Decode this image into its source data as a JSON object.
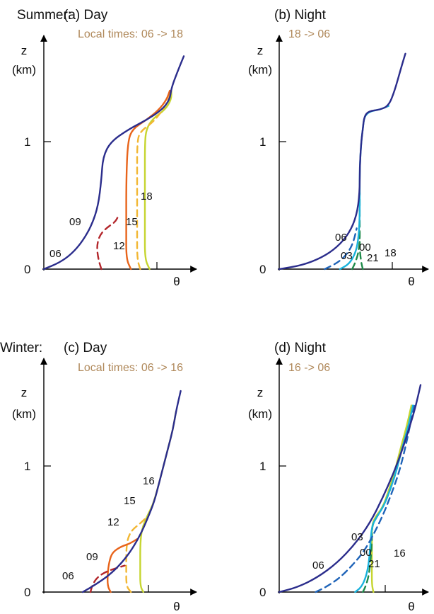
{
  "colors": {
    "accent_text": "#b0895b",
    "axis": "#000000",
    "c06": "#2b2d8c",
    "c09": "#b3262b",
    "c12": "#e8641b",
    "c15": "#f2b733",
    "c18": "#c6d530",
    "c21": "#1e8a4a",
    "c00": "#19b2dc",
    "c03": "#1e63b8"
  },
  "chart_data": [
    {
      "type": "line",
      "panel": "(a) Day",
      "season_label": "Summer:",
      "title": "(a) Day",
      "subtitle": "Local times: 06 -> 18",
      "ylabel": "z",
      "ylabel_unit": "(km)",
      "xlabel": "θ",
      "y_ticks": [
        "0",
        "1"
      ],
      "ylim": [
        0,
        1.75
      ],
      "xlim": [
        0,
        1
      ],
      "series": [
        {
          "name": "06",
          "style": "solid",
          "color_key": "c06",
          "points": [
            [
              0.0,
              0.0
            ],
            [
              0.1,
              0.05
            ],
            [
              0.18,
              0.12
            ],
            [
              0.25,
              0.22
            ],
            [
              0.31,
              0.35
            ],
            [
              0.35,
              0.5
            ],
            [
              0.37,
              0.7
            ],
            [
              0.38,
              0.88
            ],
            [
              0.43,
              1.0
            ],
            [
              0.55,
              1.1
            ],
            [
              0.66,
              1.17
            ],
            [
              0.76,
              1.25
            ],
            [
              0.81,
              1.33
            ],
            [
              0.82,
              1.42
            ],
            [
              0.86,
              1.55
            ],
            [
              0.9,
              1.67
            ]
          ]
        },
        {
          "name": "09",
          "style": "dashed",
          "color_key": "c09",
          "points": [
            [
              0.37,
              0.0
            ],
            [
              0.35,
              0.08
            ],
            [
              0.34,
              0.18
            ],
            [
              0.36,
              0.27
            ],
            [
              0.41,
              0.33
            ],
            [
              0.46,
              0.37
            ],
            [
              0.48,
              0.42
            ]
          ]
        },
        {
          "name": "12",
          "style": "solid",
          "color_key": "c12",
          "points": [
            [
              0.56,
              0.0
            ],
            [
              0.53,
              0.08
            ],
            [
              0.53,
              0.3
            ],
            [
              0.53,
              0.7
            ],
            [
              0.54,
              1.0
            ],
            [
              0.57,
              1.1
            ],
            [
              0.66,
              1.17
            ],
            [
              0.74,
              1.25
            ],
            [
              0.79,
              1.33
            ],
            [
              0.81,
              1.4
            ]
          ]
        },
        {
          "name": "15",
          "style": "dashed",
          "color_key": "c15",
          "points": [
            [
              0.62,
              0.0
            ],
            [
              0.6,
              0.08
            ],
            [
              0.6,
              0.3
            ],
            [
              0.6,
              0.7
            ],
            [
              0.6,
              1.0
            ],
            [
              0.62,
              1.08
            ],
            [
              0.7,
              1.15
            ],
            [
              0.76,
              1.24
            ],
            [
              0.8,
              1.32
            ],
            [
              0.82,
              1.4
            ]
          ]
        },
        {
          "name": "18",
          "style": "solid",
          "color_key": "c18",
          "points": [
            [
              0.68,
              0.0
            ],
            [
              0.65,
              0.08
            ],
            [
              0.65,
              0.3
            ],
            [
              0.65,
              0.7
            ],
            [
              0.65,
              1.0
            ],
            [
              0.66,
              1.1
            ],
            [
              0.7,
              1.18
            ],
            [
              0.78,
              1.25
            ],
            [
              0.82,
              1.33
            ],
            [
              0.82,
              1.4
            ]
          ]
        }
      ]
    },
    {
      "type": "line",
      "panel": "(b) Night",
      "title": "(b) Night",
      "subtitle": "18 -> 06",
      "ylabel": "z",
      "ylabel_unit": "(km)",
      "xlabel": "θ",
      "y_ticks": [
        "0",
        "1"
      ],
      "ylim": [
        0,
        1.75
      ],
      "xlim": [
        0,
        1
      ],
      "series": [
        {
          "name": "06",
          "style": "solid",
          "color_key": "c06",
          "points": [
            [
              0.0,
              0.0
            ],
            [
              0.15,
              0.03
            ],
            [
              0.28,
              0.09
            ],
            [
              0.38,
              0.17
            ],
            [
              0.46,
              0.28
            ],
            [
              0.51,
              0.42
            ],
            [
              0.53,
              0.6
            ],
            [
              0.53,
              0.8
            ],
            [
              0.54,
              1.0
            ],
            [
              0.55,
              1.1
            ],
            [
              0.56,
              1.2
            ],
            [
              0.59,
              1.24
            ],
            [
              0.66,
              1.25
            ],
            [
              0.72,
              1.28
            ],
            [
              0.76,
              1.4
            ],
            [
              0.8,
              1.57
            ],
            [
              0.83,
              1.69
            ]
          ]
        },
        {
          "name": "03",
          "style": "dashed",
          "color_key": "c03",
          "points": [
            [
              0.3,
              0.0
            ],
            [
              0.4,
              0.06
            ],
            [
              0.46,
              0.14
            ],
            [
              0.49,
              0.22
            ],
            [
              0.51,
              0.32
            ]
          ]
        },
        {
          "name": "00",
          "style": "solid",
          "color_key": "c00",
          "points": [
            [
              0.4,
              0.0
            ],
            [
              0.46,
              0.04
            ],
            [
              0.5,
              0.12
            ],
            [
              0.52,
              0.22
            ],
            [
              0.53,
              0.4
            ],
            [
              0.53,
              0.6
            ],
            [
              0.53,
              0.8
            ],
            [
              0.54,
              1.0
            ],
            [
              0.55,
              1.1
            ],
            [
              0.56,
              1.2
            ],
            [
              0.6,
              1.24
            ],
            [
              0.66,
              1.25
            ],
            [
              0.72,
              1.28
            ]
          ]
        },
        {
          "name": "21",
          "style": "dashed",
          "color_key": "c21",
          "points": [
            [
              0.48,
              0.0
            ],
            [
              0.5,
              0.05
            ],
            [
              0.52,
              0.12
            ],
            [
              0.53,
              0.22
            ],
            [
              0.53,
              0.32
            ]
          ]
        },
        {
          "name": "18",
          "style": "dashed",
          "color_key": "c21",
          "points": [
            [
              0.55,
              0.0
            ],
            [
              0.54,
              0.05
            ],
            [
              0.53,
              0.15
            ],
            [
              0.53,
              0.3
            ],
            [
              0.53,
              0.45
            ],
            [
              0.53,
              0.6
            ]
          ]
        }
      ]
    },
    {
      "type": "line",
      "panel": "(c) Day",
      "season_label": "Winter:",
      "title": "(c) Day",
      "subtitle": "Local times: 06 -> 16",
      "ylabel": "z",
      "ylabel_unit": "(km)",
      "xlabel": "θ",
      "y_ticks": [
        "0",
        "1"
      ],
      "ylim": [
        0,
        1.75
      ],
      "xlim": [
        0,
        1
      ],
      "series": [
        {
          "name": "06",
          "style": "solid",
          "color_key": "c06",
          "points": [
            [
              0.25,
              0.0
            ],
            [
              0.33,
              0.06
            ],
            [
              0.42,
              0.14
            ],
            [
              0.5,
              0.24
            ],
            [
              0.57,
              0.36
            ],
            [
              0.63,
              0.5
            ],
            [
              0.67,
              0.62
            ],
            [
              0.71,
              0.75
            ],
            [
              0.74,
              0.9
            ],
            [
              0.77,
              1.05
            ],
            [
              0.8,
              1.2
            ],
            [
              0.83,
              1.35
            ],
            [
              0.85,
              1.5
            ],
            [
              0.88,
              1.67
            ]
          ]
        },
        {
          "name": "09",
          "style": "dashed",
          "color_key": "c09",
          "points": [
            [
              0.3,
              0.0
            ],
            [
              0.31,
              0.05
            ],
            [
              0.34,
              0.12
            ],
            [
              0.4,
              0.17
            ],
            [
              0.47,
              0.2
            ],
            [
              0.52,
              0.22
            ]
          ]
        },
        {
          "name": "12",
          "style": "solid",
          "color_key": "c12",
          "points": [
            [
              0.43,
              0.0
            ],
            [
              0.41,
              0.05
            ],
            [
              0.41,
              0.15
            ],
            [
              0.42,
              0.25
            ],
            [
              0.44,
              0.33
            ],
            [
              0.5,
              0.38
            ],
            [
              0.55,
              0.4
            ],
            [
              0.6,
              0.44
            ]
          ]
        },
        {
          "name": "15",
          "style": "dashed",
          "color_key": "c15",
          "points": [
            [
              0.56,
              0.0
            ],
            [
              0.53,
              0.05
            ],
            [
              0.53,
              0.2
            ],
            [
              0.53,
              0.35
            ],
            [
              0.54,
              0.45
            ],
            [
              0.57,
              0.52
            ],
            [
              0.62,
              0.57
            ],
            [
              0.66,
              0.62
            ]
          ]
        },
        {
          "name": "16",
          "style": "solid",
          "color_key": "c18",
          "points": [
            [
              0.64,
              0.0
            ],
            [
              0.62,
              0.05
            ],
            [
              0.62,
              0.2
            ],
            [
              0.62,
              0.4
            ],
            [
              0.63,
              0.52
            ],
            [
              0.66,
              0.62
            ],
            [
              0.7,
              0.72
            ],
            [
              0.73,
              0.85
            ],
            [
              0.77,
              1.05
            ],
            [
              0.8,
              1.2
            ],
            [
              0.83,
              1.35
            ],
            [
              0.85,
              1.5
            ]
          ]
        }
      ]
    },
    {
      "type": "line",
      "panel": "(d) Night",
      "title": "(d) Night",
      "subtitle": "16 -> 06",
      "ylabel": "z",
      "ylabel_unit": "(km)",
      "xlabel": "θ",
      "y_ticks": [
        "0",
        "1"
      ],
      "ylim": [
        0,
        1.75
      ],
      "xlim": [
        0,
        1
      ],
      "series": [
        {
          "name": "06",
          "style": "solid",
          "color_key": "c06",
          "points": [
            [
              0.0,
              0.0
            ],
            [
              0.12,
              0.04
            ],
            [
              0.25,
              0.12
            ],
            [
              0.38,
              0.24
            ],
            [
              0.5,
              0.4
            ],
            [
              0.6,
              0.58
            ],
            [
              0.68,
              0.78
            ],
            [
              0.75,
              0.98
            ],
            [
              0.81,
              1.18
            ],
            [
              0.86,
              1.38
            ],
            [
              0.9,
              1.55
            ],
            [
              0.93,
              1.72
            ]
          ]
        },
        {
          "name": "03",
          "style": "dashed",
          "color_key": "c03",
          "points": [
            [
              0.24,
              0.0
            ],
            [
              0.32,
              0.05
            ],
            [
              0.4,
              0.12
            ],
            [
              0.48,
              0.22
            ],
            [
              0.56,
              0.34
            ],
            [
              0.63,
              0.5
            ],
            [
              0.69,
              0.66
            ],
            [
              0.74,
              0.82
            ],
            [
              0.79,
              1.0
            ],
            [
              0.83,
              1.2
            ],
            [
              0.86,
              1.38
            ],
            [
              0.89,
              1.55
            ]
          ]
        },
        {
          "name": "00",
          "style": "solid",
          "color_key": "c00",
          "points": [
            [
              0.5,
              0.0
            ],
            [
              0.54,
              0.04
            ],
            [
              0.57,
              0.12
            ],
            [
              0.59,
              0.24
            ],
            [
              0.6,
              0.4
            ],
            [
              0.61,
              0.55
            ],
            [
              0.64,
              0.62
            ],
            [
              0.69,
              0.72
            ],
            [
              0.73,
              0.85
            ],
            [
              0.77,
              1.0
            ],
            [
              0.81,
              1.2
            ],
            [
              0.85,
              1.38
            ],
            [
              0.88,
              1.55
            ]
          ]
        },
        {
          "name": "21",
          "style": "dashed",
          "color_key": "c21",
          "points": [
            [
              0.55,
              0.0
            ],
            [
              0.57,
              0.05
            ],
            [
              0.59,
              0.14
            ],
            [
              0.6,
              0.25
            ],
            [
              0.61,
              0.4
            ],
            [
              0.61,
              0.55
            ],
            [
              0.64,
              0.62
            ],
            [
              0.69,
              0.72
            ],
            [
              0.73,
              0.85
            ],
            [
              0.77,
              1.0
            ],
            [
              0.81,
              1.2
            ],
            [
              0.85,
              1.38
            ]
          ]
        },
        {
          "name": "16",
          "style": "solid",
          "color_key": "c18",
          "points": [
            [
              0.62,
              0.0
            ],
            [
              0.61,
              0.06
            ],
            [
              0.61,
              0.2
            ],
            [
              0.61,
              0.4
            ],
            [
              0.61,
              0.55
            ],
            [
              0.63,
              0.62
            ],
            [
              0.68,
              0.7
            ],
            [
              0.72,
              0.84
            ],
            [
              0.76,
              1.0
            ],
            [
              0.8,
              1.2
            ],
            [
              0.84,
              1.38
            ],
            [
              0.87,
              1.55
            ]
          ]
        }
      ]
    }
  ]
}
